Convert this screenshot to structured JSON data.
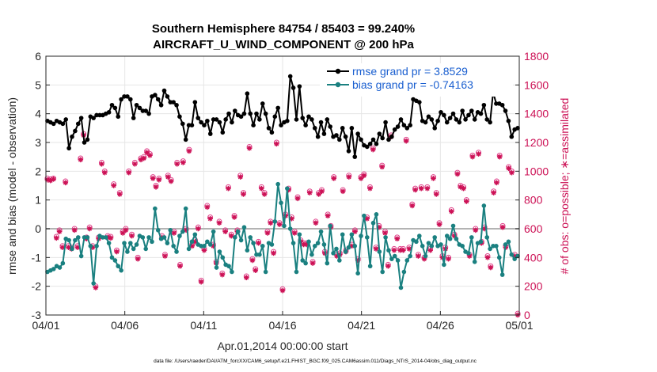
{
  "chart_data": {
    "type": "line",
    "title_line1": "Southern Hemisphere 84754 / 85403 = 99.240%",
    "title_line2": "AIRCRAFT_U_WIND_COMPONENT @ 200 hPa",
    "xlabel": "Apr.01,2014 00:00:00 start",
    "ylabel_left": "rmse and bias (model - observation)",
    "ylabel_right": "# of obs: o=possible; ∗=assimilated",
    "footnote": "data file: /Users/raeder/DAI/ATM_forcXX/CAM6_setup/f.e21.FHIST_BGC.f09_025.CAM6assim.011/Diags_NTrS_2014-04/obs_diag_output.nc",
    "x_range_days": [
      0,
      30
    ],
    "ylim_left": [
      -3,
      6
    ],
    "ylim_right": [
      0,
      1800
    ],
    "x_ticks": [
      {
        "day": 0,
        "label": "04/01"
      },
      {
        "day": 5,
        "label": "04/06"
      },
      {
        "day": 10,
        "label": "04/11"
      },
      {
        "day": 15,
        "label": "04/16"
      },
      {
        "day": 20,
        "label": "04/21"
      },
      {
        "day": 25,
        "label": "04/26"
      },
      {
        "day": 30,
        "label": "05/01"
      }
    ],
    "y_ticks_left": [
      "-3",
      "-2",
      "-1",
      "0",
      "1",
      "2",
      "3",
      "4",
      "5",
      "6"
    ],
    "y_ticks_right": [
      "0",
      "200",
      "400",
      "600",
      "800",
      "1000",
      "1200",
      "1400",
      "1600",
      "1800"
    ],
    "series": [
      {
        "name": "rmse grand pr = 3.8529",
        "color": "#000000",
        "axis": "left",
        "values": [
          3.75,
          3.7,
          3.65,
          3.75,
          3.7,
          3.65,
          3.8,
          2.8,
          3.2,
          3.4,
          3.65,
          3.85,
          3.0,
          3.1,
          3.9,
          3.85,
          3.95,
          3.95,
          3.95,
          4.0,
          4.05,
          4.3,
          4.2,
          3.9,
          4.5,
          4.6,
          4.6,
          4.5,
          3.85,
          4.3,
          4.2,
          4.1,
          4.1,
          4.0,
          4.6,
          4.65,
          4.5,
          4.3,
          4.8,
          4.6,
          4.4,
          4.4,
          4.3,
          3.9,
          3.65,
          3.1,
          3.6,
          3.6,
          4.4,
          3.85,
          3.7,
          3.6,
          3.75,
          3.3,
          3.8,
          3.8,
          3.7,
          3.35,
          3.8,
          4.0,
          3.7,
          4.1,
          3.95,
          3.9,
          4.0,
          4.7,
          4.0,
          3.6,
          4.0,
          3.8,
          4.35,
          4.0,
          3.5,
          3.35,
          3.9,
          4.2,
          3.6,
          3.7,
          3.75,
          5.3,
          4.9,
          3.8,
          4.95,
          3.85,
          3.6,
          3.9,
          3.8,
          3.5,
          3.2,
          3.7,
          3.3,
          3.8,
          3.55,
          3.2,
          3.25,
          3.1,
          3.5,
          3.2,
          2.7,
          3.5,
          2.5,
          3.3,
          3.1,
          2.9,
          2.85,
          2.95,
          3.1,
          2.95,
          3.3,
          3.15,
          3.7,
          3.1,
          3.2,
          3.45,
          3.55,
          3.8,
          3.6,
          3.5,
          3.6,
          4.5,
          4.45,
          4.4,
          3.75,
          3.7,
          3.9,
          3.8,
          3.5,
          3.75,
          4.05,
          3.95,
          3.7,
          3.85,
          4.0,
          3.8,
          3.7,
          4.1,
          3.8,
          3.95,
          4.1,
          3.8,
          4.05,
          4.0,
          4.3,
          3.8,
          3.7,
          4.75,
          4.35,
          4.35,
          4.3,
          4.1,
          3.75,
          3.2,
          3.45,
          3.5
        ]
      },
      {
        "name": "bias grand pr = -0.74163",
        "color": "#1a8080",
        "axis": "left",
        "values": [
          -1.5,
          -1.45,
          -1.4,
          -1.3,
          -1.35,
          -1.2,
          -0.35,
          -0.4,
          -0.7,
          -0.4,
          -0.3,
          -0.95,
          -0.3,
          -0.3,
          -0.6,
          -1.9,
          -0.6,
          -0.25,
          -0.3,
          -0.3,
          -0.5,
          -1.0,
          -1.1,
          -1.3,
          -1.45,
          -0.5,
          -0.8,
          -0.5,
          -0.7,
          -0.55,
          -0.25,
          -0.3,
          -0.7,
          -0.3,
          -0.45,
          0.7,
          -0.05,
          -0.35,
          -0.3,
          -0.5,
          -0.05,
          -0.6,
          -0.8,
          -0.25,
          -0.1,
          0.7,
          -0.7,
          -0.45,
          -0.2,
          -0.55,
          -0.6,
          -0.6,
          -0.45,
          -0.55,
          -0.1,
          -1.35,
          -0.8,
          -1.0,
          -1.25,
          -1.3,
          -1.5,
          -0.3,
          -0.1,
          -0.4,
          0.05,
          -0.75,
          -0.3,
          -0.5,
          -0.9,
          -0.9,
          -0.6,
          -1.5,
          -0.5,
          -0.55,
          0.25,
          1.55,
          0.9,
          0.1,
          1.4,
          0.0,
          -0.5,
          -1.5,
          -0.2,
          -1.1,
          -1.2,
          -0.45,
          -0.9,
          -0.6,
          -0.5,
          -0.1,
          -0.55,
          -1.2,
          0.1,
          -0.85,
          -0.7,
          -1.1,
          -0.2,
          -0.8,
          -0.65,
          -0.2,
          -0.6,
          -1.55,
          -0.25,
          0.45,
          -0.3,
          -1.3,
          0.2,
          0.5,
          -0.8,
          -1.5,
          -0.3,
          -0.75,
          -1.05,
          -0.95,
          -1.1,
          -2.05,
          -1.5,
          -1.1,
          -0.95,
          -0.4,
          -0.45,
          -0.25,
          -0.6,
          -0.95,
          -0.5,
          -0.6,
          -0.3,
          -0.6,
          -0.55,
          -1.25,
          -0.25,
          -0.35,
          0.1,
          -0.35,
          -0.55,
          -0.6,
          -0.8,
          -0.85,
          -0.3,
          -1.15,
          -0.5,
          -0.45,
          0.8,
          -0.3,
          -0.7,
          -0.6,
          -0.6,
          -1.0,
          -1.6,
          -0.55,
          -0.45,
          -0.9,
          -1.05,
          -0.95
        ]
      },
      {
        "name": "obs possible",
        "color": "#e0408a",
        "axis": "right",
        "marker": "circle",
        "values": [
          950,
          945,
          950,
          545,
          590,
          480,
          930,
          480,
          470,
          600,
          480,
          1090,
          1260,
          540,
          610,
          480,
          200,
          540,
          1060,
          1000,
          550,
          545,
          910,
          450,
          850,
          580,
          600,
          1000,
          560,
          1060,
          400,
          1090,
          1100,
          1140,
          1120,
          960,
          900,
          950,
          550,
          420,
          970,
          940,
          580,
          1060,
          350,
          1070,
          600,
          1150,
          490,
          520,
          610,
          240,
          460,
          760,
          680,
          490,
          370,
          650,
          290,
          590,
          890,
          560,
          690,
          590,
          970,
          850,
          270,
          1170,
          390,
          320,
          510,
          890,
          850,
          580,
          650,
          440,
          1200,
          640,
          180,
          700,
          880,
          680,
          580,
          820,
          520,
          500,
          500,
          860,
          370,
          650,
          850,
          870,
          440,
          700,
          620,
          960,
          420,
          430,
          870,
          450,
          970,
          490,
          590,
          390,
          960,
          980,
          680,
          890,
          1160,
          470,
          620,
          1040,
          580,
          350,
          1250,
          460,
          540,
          460,
          460,
          1220,
          470,
          770,
          880,
          420,
          890,
          400,
          890,
          460,
          960,
          850,
          640,
          410,
          470,
          400,
          730,
          560,
          990,
          900,
          890,
          800,
          420,
          1110,
          600,
          1130,
          510,
          610,
          410,
          340,
          860,
          930,
          1110,
          620,
          480,
          1030,
          1000,
          420,
          10
        ]
      },
      {
        "name": "obs assimilated",
        "color": "#cc1155",
        "axis": "right",
        "marker": "asterisk",
        "values": [
          940,
          935,
          945,
          535,
          580,
          470,
          920,
          470,
          460,
          590,
          470,
          1080,
          1250,
          530,
          600,
          470,
          190,
          530,
          1050,
          990,
          540,
          535,
          900,
          440,
          840,
          570,
          590,
          990,
          550,
          1050,
          390,
          1080,
          1090,
          1130,
          1110,
          950,
          890,
          940,
          540,
          410,
          960,
          930,
          570,
          1050,
          340,
          1060,
          590,
          1140,
          480,
          510,
          600,
          230,
          450,
          750,
          670,
          480,
          360,
          640,
          280,
          580,
          880,
          550,
          680,
          580,
          960,
          840,
          260,
          1160,
          380,
          310,
          500,
          880,
          840,
          570,
          640,
          430,
          1190,
          630,
          170,
          690,
          870,
          670,
          570,
          810,
          510,
          490,
          490,
          850,
          360,
          640,
          840,
          860,
          430,
          690,
          610,
          950,
          410,
          420,
          860,
          440,
          960,
          480,
          580,
          380,
          950,
          970,
          670,
          880,
          1150,
          460,
          610,
          1030,
          570,
          340,
          1240,
          450,
          530,
          450,
          450,
          1210,
          460,
          760,
          870,
          410,
          880,
          390,
          880,
          450,
          950,
          840,
          630,
          400,
          460,
          390,
          720,
          550,
          980,
          890,
          880,
          790,
          410,
          1100,
          590,
          1120,
          500,
          600,
          400,
          330,
          850,
          920,
          1100,
          610,
          470,
          1020,
          990,
          410,
          0
        ]
      }
    ]
  }
}
